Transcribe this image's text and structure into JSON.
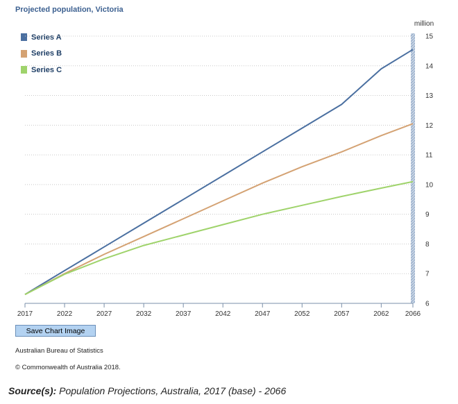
{
  "chart_data": {
    "type": "line",
    "title": "Projected population, Victoria",
    "ylabel": "million",
    "ylim": [
      6,
      15
    ],
    "y_ticks": [
      6,
      7,
      8,
      9,
      10,
      11,
      12,
      13,
      14,
      15
    ],
    "x_range": [
      2017,
      2066
    ],
    "x_ticks": [
      2017,
      2022,
      2027,
      2032,
      2037,
      2042,
      2047,
      2052,
      2057,
      2062,
      2066
    ],
    "grid": true,
    "legend_position": "top-left",
    "series": [
      {
        "name": "Series A",
        "color": "#4a6fa0",
        "x": [
          2017,
          2022,
          2027,
          2032,
          2037,
          2042,
          2047,
          2052,
          2057,
          2062,
          2066
        ],
        "values": [
          6.3,
          7.1,
          7.9,
          8.7,
          9.5,
          10.3,
          11.1,
          11.9,
          12.7,
          13.9,
          14.55
        ]
      },
      {
        "name": "Series B",
        "color": "#d4a273",
        "x": [
          2017,
          2022,
          2027,
          2032,
          2037,
          2042,
          2047,
          2052,
          2057,
          2062,
          2066
        ],
        "values": [
          6.3,
          7.0,
          7.65,
          8.25,
          8.85,
          9.45,
          10.05,
          10.6,
          11.1,
          11.65,
          12.05
        ]
      },
      {
        "name": "Series C",
        "color": "#9fd36b",
        "x": [
          2017,
          2022,
          2027,
          2032,
          2037,
          2042,
          2047,
          2052,
          2057,
          2062,
          2066
        ],
        "values": [
          6.3,
          6.98,
          7.5,
          7.95,
          8.3,
          8.65,
          9.0,
          9.3,
          9.6,
          9.88,
          10.1
        ]
      }
    ]
  },
  "controls": {
    "save_label": "Save Chart Image"
  },
  "footer": {
    "org": "Australian Bureau of Statistics",
    "copyright": "© Commonwealth of Australia 2018.",
    "source_label": "Source(s):",
    "source_text": "Population Projections, Australia, 2017 (base) - 2066"
  }
}
